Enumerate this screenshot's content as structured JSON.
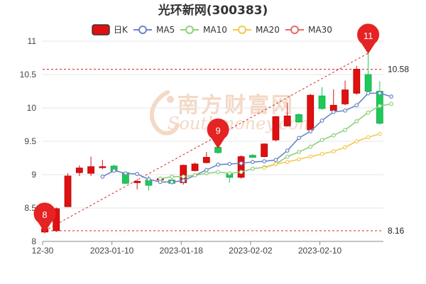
{
  "chart_data": {
    "type": "candlestick",
    "title": "光环新网(300383)",
    "legend": [
      {
        "label": "日K",
        "kind": "candle",
        "color": "#e01010"
      },
      {
        "label": "MA5",
        "kind": "line",
        "color": "#6b86c6"
      },
      {
        "label": "MA10",
        "kind": "line",
        "color": "#8fd07a"
      },
      {
        "label": "MA20",
        "kind": "line",
        "color": "#f4c94e"
      },
      {
        "label": "MA30",
        "kind": "line",
        "color": "#e86a6a"
      }
    ],
    "legend_position": "top-center",
    "y_axis": {
      "min": 8,
      "max": 11,
      "ticks": [
        8,
        8.5,
        9,
        9.5,
        10,
        10.5,
        11
      ]
    },
    "x_tick_labels": [
      {
        "i": 0,
        "label": "12-30"
      },
      {
        "i": 6,
        "label": "2023-01-10"
      },
      {
        "i": 12,
        "label": "2023-01-18"
      },
      {
        "i": 18,
        "label": "2023-02-02"
      },
      {
        "i": 24,
        "label": "2023-02-10"
      }
    ],
    "grid": "horizontal",
    "up_color": "#e01010",
    "down_color": "#1ec95a",
    "candles": [
      {
        "o": 8.14,
        "c": 8.19,
        "h": 8.22,
        "l": 8.12
      },
      {
        "o": 8.16,
        "c": 8.49,
        "h": 8.51,
        "l": 8.14
      },
      {
        "o": 8.52,
        "c": 8.98,
        "h": 9.02,
        "l": 8.52
      },
      {
        "o": 9.03,
        "c": 9.1,
        "h": 9.14,
        "l": 8.98
      },
      {
        "o": 9.02,
        "c": 9.12,
        "h": 9.27,
        "l": 8.98
      },
      {
        "o": 9.11,
        "c": 9.12,
        "h": 9.22,
        "l": 9.08
      },
      {
        "o": 9.13,
        "c": 9.05,
        "h": 9.15,
        "l": 9.03
      },
      {
        "o": 9.03,
        "c": 8.87,
        "h": 9.05,
        "l": 8.86
      },
      {
        "o": 8.88,
        "c": 8.9,
        "h": 8.93,
        "l": 8.78
      },
      {
        "o": 8.92,
        "c": 8.84,
        "h": 8.98,
        "l": 8.76
      },
      {
        "o": 8.92,
        "c": 8.94,
        "h": 8.97,
        "l": 8.9
      },
      {
        "o": 8.92,
        "c": 8.87,
        "h": 8.96,
        "l": 8.85
      },
      {
        "o": 8.88,
        "c": 9.14,
        "h": 9.15,
        "l": 8.85
      },
      {
        "o": 9.06,
        "c": 9.16,
        "h": 9.18,
        "l": 9.05
      },
      {
        "o": 9.18,
        "c": 9.26,
        "h": 9.34,
        "l": 9.17
      },
      {
        "o": 9.41,
        "c": 9.33,
        "h": 9.42,
        "l": 9.31
      },
      {
        "o": 9.01,
        "c": 8.96,
        "h": 9.02,
        "l": 8.88
      },
      {
        "o": 8.96,
        "c": 9.27,
        "h": 9.29,
        "l": 8.94
      },
      {
        "o": 9.29,
        "c": 9.26,
        "h": 9.31,
        "l": 9.25
      },
      {
        "o": 9.27,
        "c": 9.46,
        "h": 9.47,
        "l": 9.26
      },
      {
        "o": 9.52,
        "c": 9.87,
        "h": 9.88,
        "l": 9.5
      },
      {
        "o": 9.73,
        "c": 9.88,
        "h": 10.08,
        "l": 9.72
      },
      {
        "o": 9.9,
        "c": 9.79,
        "h": 9.92,
        "l": 9.77
      },
      {
        "o": 9.67,
        "c": 10.19,
        "h": 10.21,
        "l": 9.66
      },
      {
        "o": 10.18,
        "c": 9.99,
        "h": 10.31,
        "l": 9.97
      },
      {
        "o": 9.96,
        "c": 10.04,
        "h": 10.28,
        "l": 9.93
      },
      {
        "o": 10.06,
        "c": 10.27,
        "h": 10.41,
        "l": 10.04
      },
      {
        "o": 10.22,
        "c": 10.58,
        "h": 10.63,
        "l": 10.2
      },
      {
        "o": 10.5,
        "c": 10.25,
        "h": 10.82,
        "l": 10.22
      },
      {
        "o": 10.25,
        "c": 9.77,
        "h": 10.4,
        "l": 9.75
      }
    ],
    "moving_averages": [
      {
        "name": "MA5",
        "color": "#6b86c6",
        "start": 5,
        "values": [
          8.97,
          9.06,
          9.02,
          9.01,
          8.93,
          8.89,
          8.89,
          8.91,
          8.99,
          9.07,
          9.15,
          9.16,
          9.17,
          9.19,
          9.2,
          9.22,
          9.36,
          9.55,
          9.65,
          9.81,
          9.94,
          9.96,
          10.04,
          10.22,
          10.22,
          10.17
        ]
      },
      {
        "name": "MA10",
        "color": "#8fd07a",
        "start": 10,
        "values": [
          8.94,
          8.97,
          8.97,
          8.99,
          9.02,
          9.04,
          9.02,
          9.04,
          9.09,
          9.11,
          9.16,
          9.27,
          9.34,
          9.42,
          9.52,
          9.59,
          9.67,
          9.8,
          9.93,
          10.03,
          10.06
        ]
      },
      {
        "name": "MA20",
        "color": "#f4c94e",
        "start": 19,
        "values": [
          9.1,
          9.16,
          9.19,
          9.23,
          9.27,
          9.31,
          9.35,
          9.41,
          9.5,
          9.56,
          9.61
        ]
      }
    ],
    "reference_lines": [
      {
        "value": 10.58,
        "label": "10.58"
      },
      {
        "value": 8.16,
        "label": "8.16"
      }
    ],
    "markers": [
      {
        "i": 0,
        "value": 8.14,
        "label": "8"
      },
      {
        "i": 15,
        "value": 9.4,
        "label": "9"
      },
      {
        "i": 28,
        "value": 10.82,
        "label": "11"
      }
    ],
    "trend_line": {
      "from": {
        "i": 0,
        "value": 8.16
      },
      "to": {
        "i": 28,
        "value": 10.82
      }
    }
  },
  "watermark": {
    "cn": "南方财富网",
    "en": "Southmoney.com"
  }
}
